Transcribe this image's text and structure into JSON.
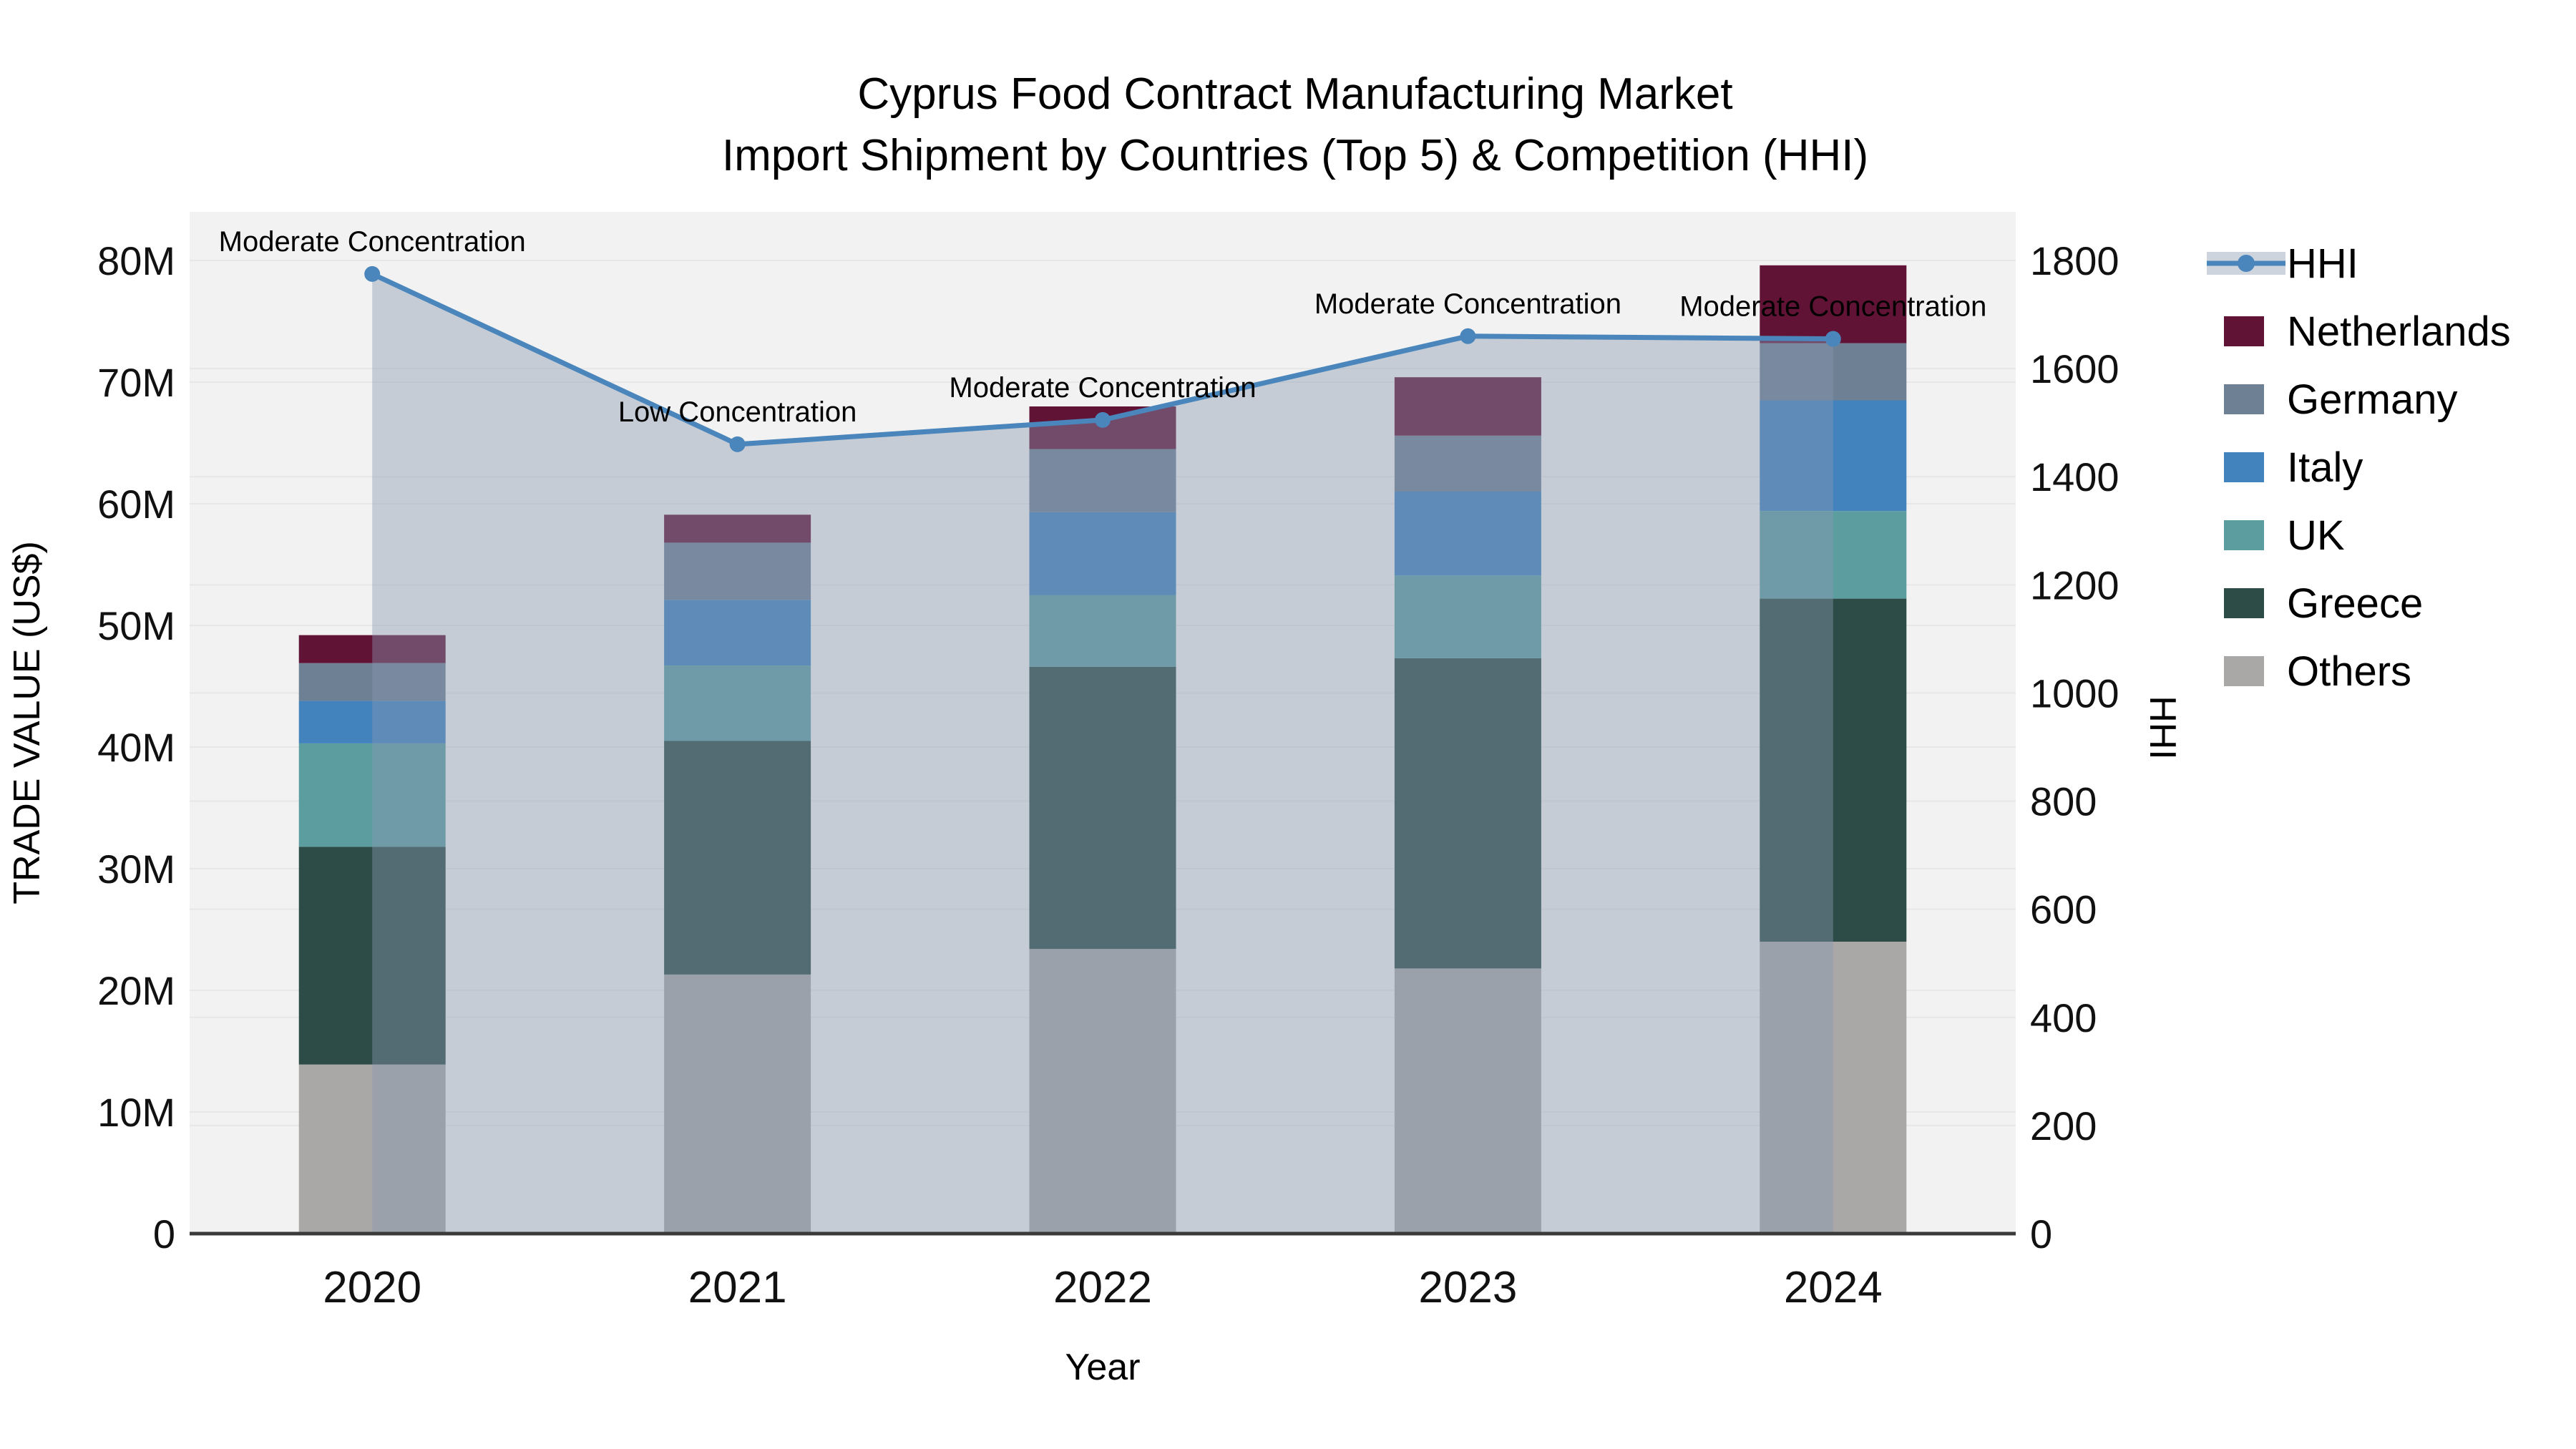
{
  "title": {
    "line1": "Cyprus Food Contract Manufacturing Market",
    "line2": "Import Shipment by Countries (Top 5) & Competition (HHI)"
  },
  "axes": {
    "y_left": {
      "label": "TRADE VALUE (US$)",
      "tick_labels": [
        "0",
        "10M",
        "20M",
        "30M",
        "40M",
        "50M",
        "60M",
        "70M",
        "80M"
      ],
      "tick_values": [
        0,
        10,
        20,
        30,
        40,
        50,
        60,
        70,
        80
      ]
    },
    "y_right": {
      "label": "HHI",
      "tick_labels": [
        "0",
        "200",
        "400",
        "600",
        "800",
        "1000",
        "1200",
        "1400",
        "1600",
        "1800"
      ],
      "tick_values": [
        0,
        200,
        400,
        600,
        800,
        1000,
        1200,
        1400,
        1600,
        1800
      ]
    },
    "x": {
      "label": "Year",
      "tick_labels": [
        "2020",
        "2021",
        "2022",
        "2023",
        "2024"
      ]
    }
  },
  "legend": {
    "items": [
      {
        "label": "HHI",
        "type": "line",
        "color": "#4a86bb"
      },
      {
        "label": "Netherlands",
        "type": "swatch",
        "color": "#611336"
      },
      {
        "label": "Germany",
        "type": "swatch",
        "color": "#6e8094"
      },
      {
        "label": "Italy",
        "type": "swatch",
        "color": "#4282bd"
      },
      {
        "label": "UK",
        "type": "swatch",
        "color": "#5c9ea0"
      },
      {
        "label": "Greece",
        "type": "swatch",
        "color": "#2e4c47"
      },
      {
        "label": "Others",
        "type": "swatch",
        "color": "#a9a8a6"
      }
    ]
  },
  "colors": {
    "plot_background": "#f2f2f2",
    "gridline": "#e7e7e7",
    "axis_spine": "#3a3a3a",
    "hhi_line": "#4a86bb",
    "hhi_area_fill": "rgba(136,152,177,0.42)",
    "annotation_text": "#000000"
  },
  "chart_data": {
    "type": "bar",
    "subtype": "stacked-bars-with-secondary-line",
    "categories": [
      "2020",
      "2021",
      "2022",
      "2023",
      "2024"
    ],
    "value_units": "million US$",
    "series": [
      {
        "name": "Others",
        "color": "#a9a8a6",
        "values": [
          13.9,
          21.3,
          23.4,
          21.8,
          24.0
        ]
      },
      {
        "name": "Greece",
        "color": "#2e4c47",
        "values": [
          17.9,
          19.2,
          23.2,
          25.5,
          28.2
        ]
      },
      {
        "name": "UK",
        "color": "#5c9ea0",
        "values": [
          8.5,
          6.2,
          5.9,
          6.8,
          7.2
        ]
      },
      {
        "name": "Italy",
        "color": "#4282bd",
        "values": [
          3.5,
          5.4,
          6.8,
          6.9,
          9.1
        ]
      },
      {
        "name": "Germany",
        "color": "#6e8094",
        "values": [
          3.1,
          4.7,
          5.2,
          4.6,
          4.7
        ]
      },
      {
        "name": "Netherlands",
        "color": "#611336",
        "values": [
          2.3,
          2.3,
          3.5,
          4.8,
          6.4
        ]
      }
    ],
    "bar_totals": [
      49.2,
      59.1,
      68.0,
      70.4,
      79.6
    ],
    "hhi_line": {
      "name": "HHI",
      "values": [
        1775,
        1460,
        1505,
        1660,
        1655
      ],
      "annotations": [
        "Moderate Concentration",
        "Low Concentration",
        "Moderate Concentration",
        "Moderate Concentration",
        "Moderate Concentration"
      ],
      "area_fill_to_zero": true
    },
    "ylim_left": [
      0,
      84
    ],
    "ylim_right": [
      0,
      1890
    ],
    "grid": true,
    "legend_position": "right"
  }
}
